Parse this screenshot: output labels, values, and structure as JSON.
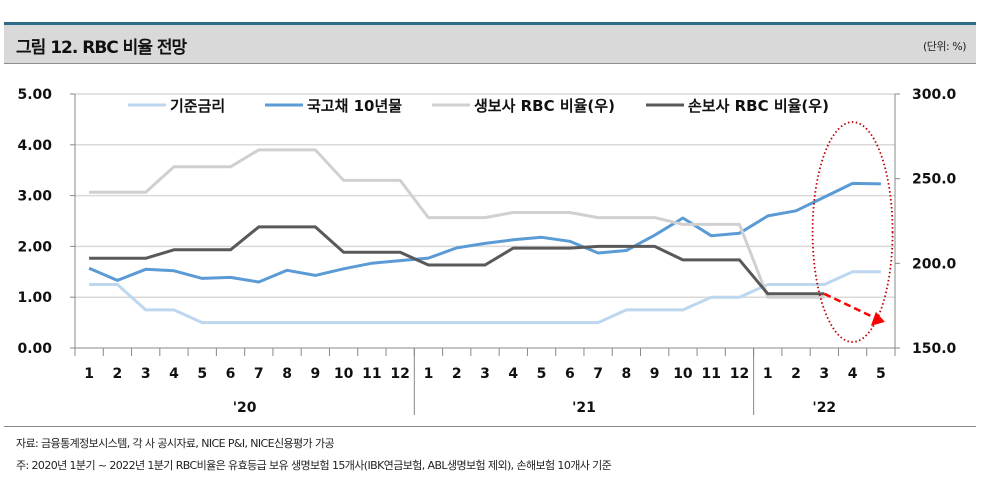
{
  "header": {
    "title": "그림 12. RBC 비율 전망",
    "unit": "(단위: %)"
  },
  "chart_data": {
    "type": "line",
    "title": "그림 12. RBC 비율 전망",
    "x_months": [
      "1",
      "2",
      "3",
      "4",
      "5",
      "6",
      "7",
      "8",
      "9",
      "10",
      "11",
      "12",
      "1",
      "2",
      "3",
      "4",
      "5",
      "6",
      "7",
      "8",
      "9",
      "10",
      "11",
      "12",
      "1",
      "2",
      "3",
      "4",
      "5"
    ],
    "x_years": [
      "'20",
      "'21",
      "'22"
    ],
    "y_left": {
      "ticks": [
        "0.00",
        "1.00",
        "2.00",
        "3.00",
        "4.00",
        "5.00"
      ],
      "range": [
        0,
        5
      ]
    },
    "y_right": {
      "ticks": [
        "150.0",
        "200.0",
        "250.0",
        "300.0"
      ],
      "range": [
        150,
        300
      ]
    },
    "grid": true,
    "legend_position": "top",
    "series": [
      {
        "name": "기준금리",
        "axis": "left",
        "color": "#bdd7ee",
        "values": [
          1.25,
          1.25,
          0.75,
          0.75,
          0.5,
          0.5,
          0.5,
          0.5,
          0.5,
          0.5,
          0.5,
          0.5,
          0.5,
          0.5,
          0.5,
          0.5,
          0.5,
          0.5,
          0.5,
          0.75,
          0.75,
          0.75,
          1.0,
          1.0,
          1.25,
          1.25,
          1.25,
          1.5,
          1.5
        ]
      },
      {
        "name": "국고채 10년물",
        "axis": "left",
        "color": "#5b9bd5",
        "values": [
          1.57,
          1.33,
          1.55,
          1.52,
          1.37,
          1.39,
          1.3,
          1.53,
          1.43,
          1.56,
          1.67,
          1.72,
          1.77,
          1.97,
          2.06,
          2.13,
          2.18,
          2.1,
          1.87,
          1.92,
          2.22,
          2.56,
          2.21,
          2.26,
          2.6,
          2.7,
          2.97,
          3.24,
          3.23
        ]
      },
      {
        "name": "생보사 RBC 비율(우)",
        "axis": "right",
        "color": "#d0d0d0",
        "values": [
          242,
          242,
          242,
          257,
          257,
          257,
          267,
          267,
          267,
          249,
          249,
          249,
          227,
          227,
          227,
          230,
          230,
          230,
          227,
          227,
          227,
          223,
          223,
          223,
          180,
          180,
          180,
          null,
          null
        ]
      },
      {
        "name": "손보사 RBC 비율(우)",
        "axis": "right",
        "color": "#595959",
        "values": [
          203,
          203,
          203,
          208,
          208,
          208,
          221.5,
          221.5,
          221.5,
          206.5,
          206.5,
          206.5,
          199,
          199,
          199,
          209,
          209,
          209,
          210,
          210,
          210,
          202,
          202,
          202,
          182,
          182,
          182,
          null,
          null
        ]
      }
    ],
    "annotations": {
      "projection_arrow": {
        "from_index": 26,
        "to_index": 28,
        "from_value": 182,
        "to_value": 166,
        "color": "#ff0000"
      },
      "highlight_ellipse": {
        "indices": [
          26,
          28
        ],
        "color": "#c00000"
      }
    }
  },
  "footer": {
    "source": "자료: 금융통계정보시스템, 각 사 공시자료, NICE P&I, NICE신용평가 가공",
    "note": "주: 2020년 1분기 ~ 2022년 1분기 RBC비율은 유효등급 보유 생명보험 15개사(IBK연금보험, ABL생명보험 제외), 손해보험 10개사 기준"
  }
}
